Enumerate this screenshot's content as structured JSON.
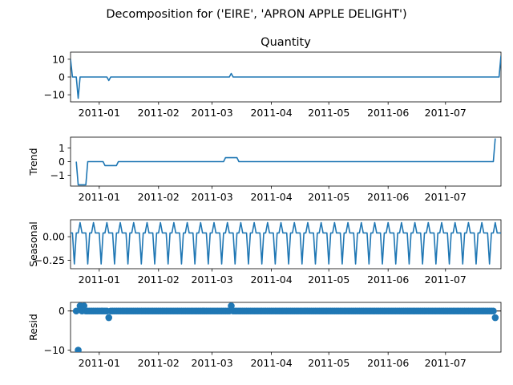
{
  "figure": {
    "suptitle": "Decomposition for ('EIRE', 'APRON APPLE DELIGHT')"
  },
  "chart_data": [
    {
      "type": "line",
      "title": "Quantity",
      "ylabel": "",
      "ylim": [
        -14,
        14
      ],
      "yticks": [
        10,
        0,
        -10
      ],
      "xlim": [
        "2010-12-17",
        "2011-07-30"
      ],
      "xticks": [
        "2011-01-01",
        "2011-02-01",
        "2011-03-01",
        "2011-04-01",
        "2011-05-01",
        "2011-06-01",
        "2011-07-01"
      ],
      "xticklabels": [
        "2011-01",
        "2011-02",
        "2011-03",
        "2011-04",
        "2011-05",
        "2011-06",
        "2011-07"
      ],
      "color": "#1f77b4",
      "points": [
        [
          "2010-12-17",
          10
        ],
        [
          "2010-12-18",
          0
        ],
        [
          "2010-12-20",
          0
        ],
        [
          "2010-12-21",
          -12
        ],
        [
          "2010-12-22",
          0
        ],
        [
          "2011-01-05",
          0
        ],
        [
          "2011-01-06",
          -2
        ],
        [
          "2011-01-07",
          0
        ],
        [
          "2011-03-10",
          0
        ],
        [
          "2011-03-11",
          2
        ],
        [
          "2011-03-12",
          0
        ],
        [
          "2011-07-29",
          0
        ],
        [
          "2011-07-30",
          12
        ]
      ]
    },
    {
      "type": "line",
      "title": "",
      "ylabel": "Trend",
      "ylim": [
        -1.8,
        1.8
      ],
      "yticks": [
        1,
        0,
        -1
      ],
      "xlim": [
        "2010-12-17",
        "2011-07-30"
      ],
      "xticks": [
        "2011-01-01",
        "2011-02-01",
        "2011-03-01",
        "2011-04-01",
        "2011-05-01",
        "2011-06-01",
        "2011-07-01"
      ],
      "xticklabels": [
        "2011-01",
        "2011-02",
        "2011-03",
        "2011-04",
        "2011-05",
        "2011-06",
        "2011-07"
      ],
      "color": "#1f77b4",
      "points": [
        [
          "2010-12-20",
          0
        ],
        [
          "2010-12-21",
          -1.71
        ],
        [
          "2010-12-25",
          -1.71
        ],
        [
          "2010-12-26",
          0
        ],
        [
          "2011-01-03",
          0
        ],
        [
          "2011-01-04",
          -0.29
        ],
        [
          "2011-01-10",
          -0.29
        ],
        [
          "2011-01-11",
          0
        ],
        [
          "2011-03-07",
          0
        ],
        [
          "2011-03-08",
          0.29
        ],
        [
          "2011-03-14",
          0.29
        ],
        [
          "2011-03-15",
          0
        ],
        [
          "2011-07-26",
          0
        ],
        [
          "2011-07-27",
          1.71
        ]
      ]
    },
    {
      "type": "line",
      "title": "",
      "ylabel": "Seasonal",
      "ylim": [
        -0.34,
        0.18
      ],
      "yticks": [
        0.0,
        -0.25
      ],
      "yticklabels": [
        "0.00",
        "−0.25"
      ],
      "xlim": [
        "2010-12-17",
        "2011-07-30"
      ],
      "xticks": [
        "2011-01-01",
        "2011-02-01",
        "2011-03-01",
        "2011-04-01",
        "2011-05-01",
        "2011-06-01",
        "2011-07-01"
      ],
      "xticklabels": [
        "2011-01",
        "2011-02",
        "2011-03",
        "2011-04",
        "2011-05",
        "2011-06",
        "2011-07"
      ],
      "color": "#1f77b4",
      "period_days": 7,
      "start": "2010-12-17",
      "end": "2011-07-30",
      "pattern": [
        0.04,
        0.04,
        -0.29,
        0.04,
        0.04,
        0.15,
        0.04
      ]
    },
    {
      "type": "scatter",
      "title": "",
      "ylabel": "Resid",
      "ylim": [
        -10.5,
        2.2
      ],
      "yticks": [
        0,
        -10
      ],
      "xlim": [
        "2010-12-17",
        "2011-07-30"
      ],
      "xticks": [
        "2011-01-01",
        "2011-02-01",
        "2011-03-01",
        "2011-04-01",
        "2011-05-01",
        "2011-06-01",
        "2011-07-01"
      ],
      "xticklabels": [
        "2011-01",
        "2011-02",
        "2011-03",
        "2011-04",
        "2011-05",
        "2011-06",
        "2011-07"
      ],
      "color": "#1f77b4",
      "baseline": 0,
      "range": {
        "start": "2010-12-20",
        "end": "2011-07-27",
        "value": 0
      },
      "outliers": [
        [
          "2010-12-20",
          0
        ],
        [
          "2010-12-21",
          -10
        ],
        [
          "2010-12-22",
          1.3
        ],
        [
          "2010-12-24",
          1.3
        ],
        [
          "2011-01-06",
          -1.7
        ],
        [
          "2011-03-11",
          1.3
        ],
        [
          "2011-07-27",
          -1.7
        ]
      ]
    }
  ]
}
